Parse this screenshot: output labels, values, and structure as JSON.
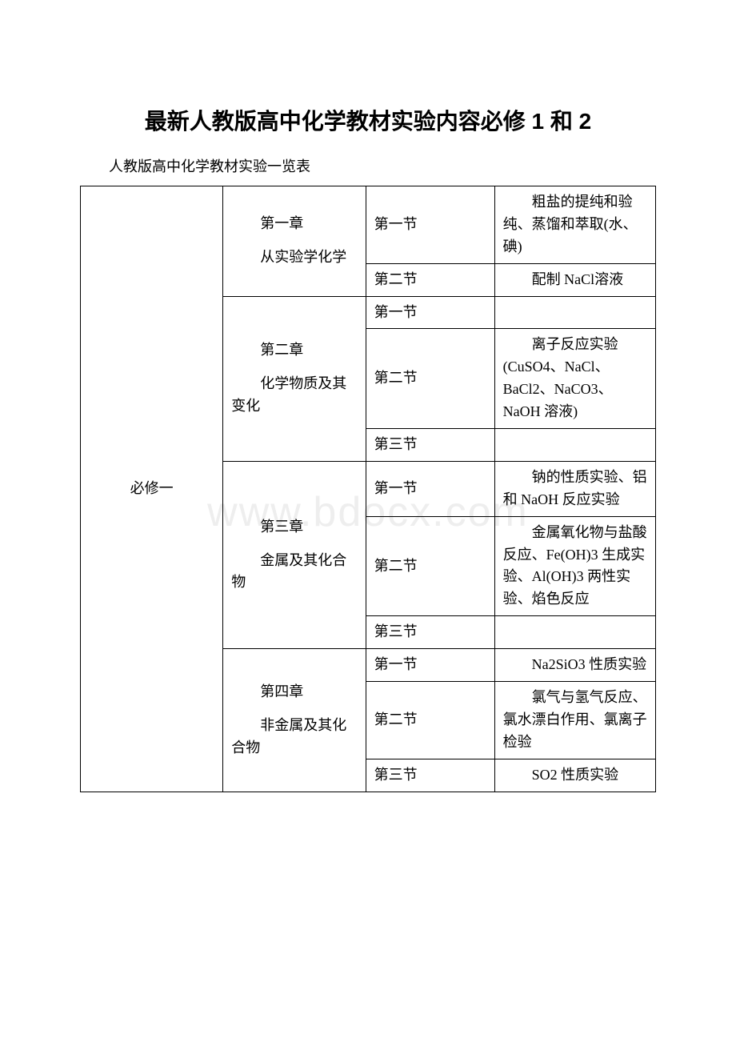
{
  "title": "最新人教版高中化学教材实验内容必修 1 和 2",
  "subtitle": "人教版高中化学教材实验一览表",
  "watermark": "www.bdocx.com",
  "table": {
    "book": "必修一",
    "chapters": [
      {
        "title": "第一章",
        "sub": "从实验学化学",
        "sections": [
          {
            "name": "第一节",
            "desc": "粗盐的提纯和验纯、蒸馏和萃取(水、碘)"
          },
          {
            "name": "第二节",
            "desc": "配制 NaCl溶液"
          }
        ]
      },
      {
        "title": "第二章",
        "sub": "化学物质及其变化",
        "sections": [
          {
            "name": "第一节",
            "desc": ""
          },
          {
            "name": "第二节",
            "desc": "离子反应实验(CuSO4、NaCl、BaCl2、NaCO3、NaOH 溶液)"
          },
          {
            "name": "第三节",
            "desc": ""
          }
        ]
      },
      {
        "title": "第三章",
        "sub": "金属及其化合物",
        "sections": [
          {
            "name": "第一节",
            "desc": "钠的性质实验、铝和 NaOH 反应实验"
          },
          {
            "name": "第二节",
            "desc": "金属氧化物与盐酸反应、Fe(OH)3 生成实验、Al(OH)3 两性实验、焰色反应"
          },
          {
            "name": "第三节",
            "desc": ""
          }
        ]
      },
      {
        "title": "第四章",
        "sub": "非金属及其化合物",
        "sections": [
          {
            "name": "第一节",
            "desc": "Na2SiO3 性质实验"
          },
          {
            "name": "第二节",
            "desc": "氯气与氢气反应、氯水漂白作用、氯离子检验"
          },
          {
            "name": "第三节",
            "desc": "SO2 性质实验"
          }
        ]
      }
    ]
  },
  "colors": {
    "text": "#000000",
    "border": "#000000",
    "background": "#ffffff",
    "watermark": "#eeeeee"
  }
}
